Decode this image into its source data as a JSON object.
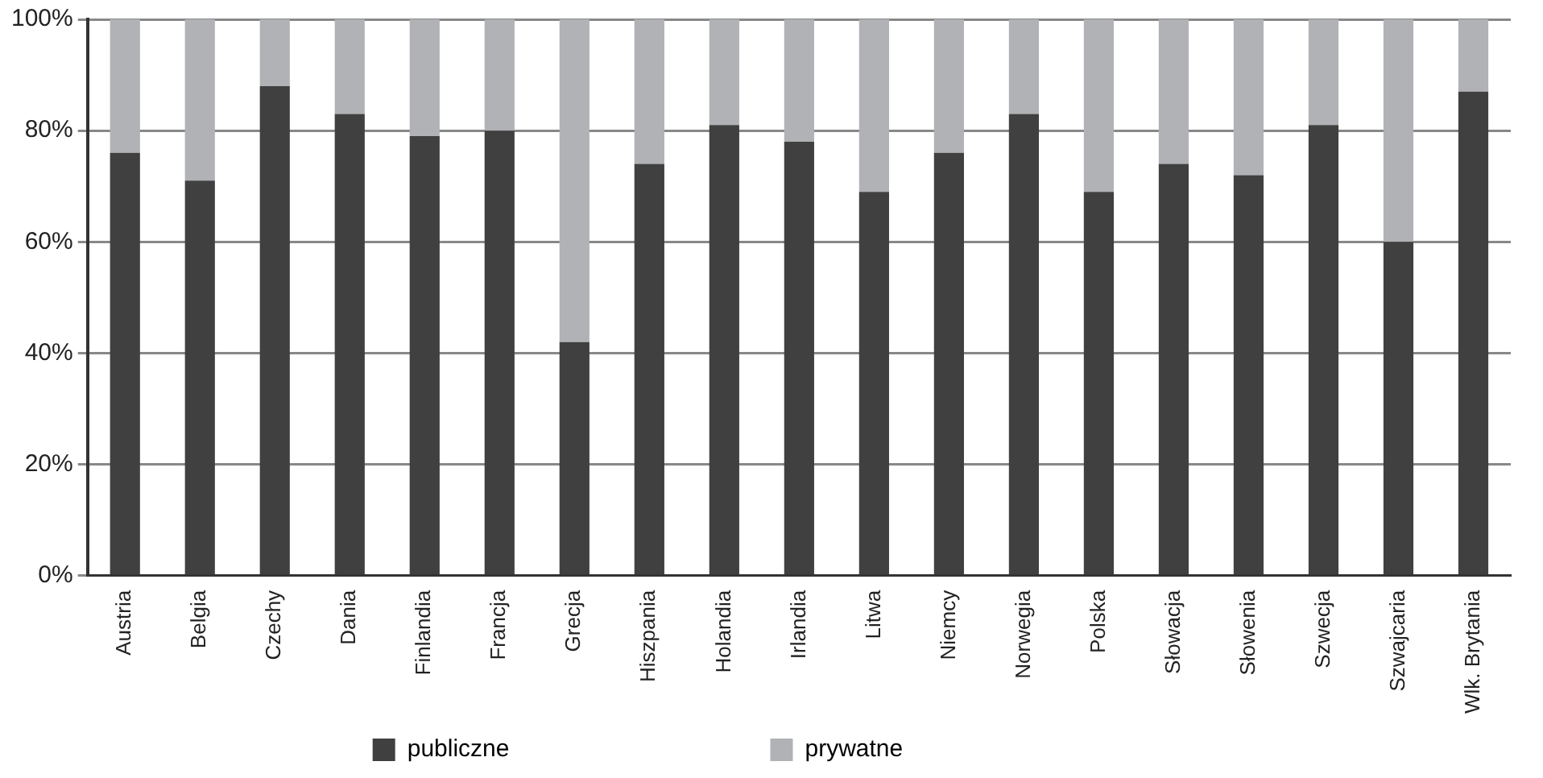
{
  "chart_data": {
    "type": "bar",
    "stacked": true,
    "categories": [
      "Austria",
      "Belgia",
      "Czechy",
      "Dania",
      "Finlandia",
      "Francja",
      "Grecja",
      "Hiszpania",
      "Holandia",
      "Irlandia",
      "Litwa",
      "Niemcy",
      "Norwegia",
      "Polska",
      "Słowacja",
      "Słowenia",
      "Szwecja",
      "Szwajcaria",
      "Wlk. Brytania"
    ],
    "series": [
      {
        "name": "publiczne",
        "color": "#404040",
        "values": [
          76,
          71,
          88,
          83,
          79,
          80,
          42,
          74,
          81,
          78,
          69,
          76,
          83,
          69,
          74,
          72,
          81,
          60,
          87
        ]
      },
      {
        "name": "prywatne",
        "color": "#b1b2b5",
        "values": [
          24,
          29,
          12,
          17,
          21,
          20,
          58,
          26,
          19,
          22,
          31,
          24,
          17,
          31,
          26,
          28,
          19,
          40,
          13
        ]
      }
    ],
    "ylim": [
      0,
      100
    ],
    "yticks": [
      {
        "value": 0,
        "label": "0%"
      },
      {
        "value": 20,
        "label": "20%"
      },
      {
        "value": 40,
        "label": "40%"
      },
      {
        "value": 60,
        "label": "60%"
      },
      {
        "value": 80,
        "label": "80%"
      },
      {
        "value": 100,
        "label": "100%"
      }
    ],
    "grid": "y",
    "legend": "bottom"
  }
}
